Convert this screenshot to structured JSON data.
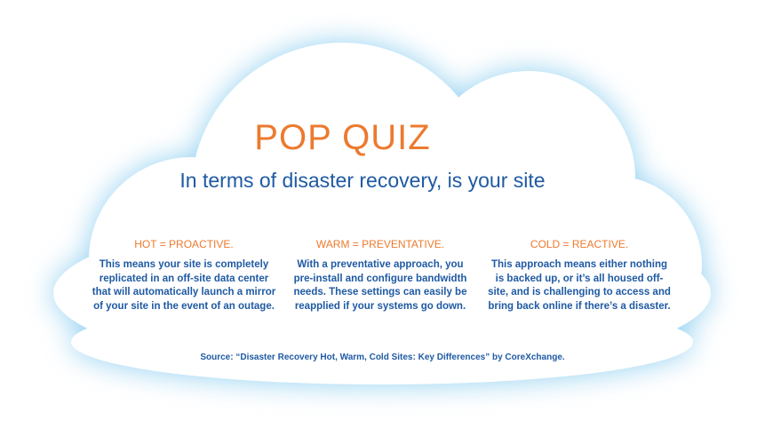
{
  "cloud": {
    "fill_color": "#ffffff",
    "glow_color": "#7fc8ee"
  },
  "title": "POP QUIZ",
  "subtitle": "In terms of disaster recovery, is your site",
  "columns": [
    {
      "heading": "HOT = PROACTIVE.",
      "body": "This means your site is completely replicated in an off-site data center that will automatically launch a mirror of your site in the event of an outage."
    },
    {
      "heading": "WARM = PREVENTATIVE.",
      "body": "With a preventative approach, you pre-install and configure bandwidth needs. These settings can easily be reapplied if your systems go down."
    },
    {
      "heading": "COLD = REACTIVE.",
      "body": "This approach means either nothing is backed up, or it’s all housed off-site, and is challenging to access and bring back online if there’s a disaster."
    }
  ],
  "source": "Source: “Disaster Recovery Hot, Warm, Cold Sites: Key Differences” by CoreXchange.",
  "colors": {
    "accent_orange": "#ec7a2e",
    "text_blue": "#1f5aa3"
  }
}
